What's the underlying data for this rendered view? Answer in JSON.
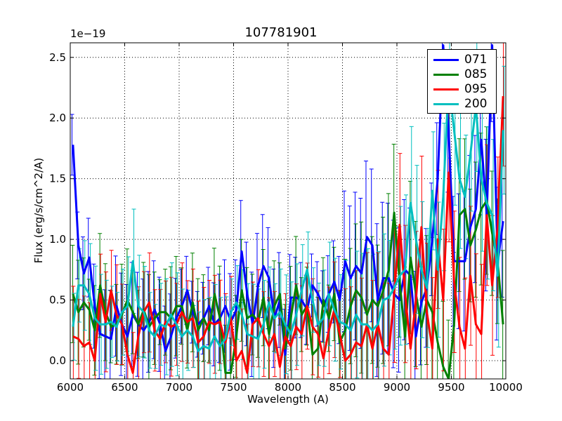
{
  "chart_data": {
    "type": "line",
    "title": "107781901",
    "xlabel": "Wavelength (A)",
    "ylabel": "Flux (erg/s/cm^2/A)",
    "y_offset_label": "1e−19",
    "xlim": [
      6000,
      10000
    ],
    "ylim": [
      -0.15,
      2.62
    ],
    "xticks": [
      6000,
      6500,
      7000,
      7500,
      8000,
      8500,
      9000,
      9500,
      10000
    ],
    "yticks": [
      0.0,
      0.5,
      1.0,
      1.5,
      2.0,
      2.5
    ],
    "ytick_labels": [
      "0.0",
      "0.5",
      "1.0",
      "1.5",
      "2.0",
      "2.5"
    ],
    "grid": true,
    "legend_position": "top-right",
    "x": [
      6025,
      6075,
      6125,
      6175,
      6225,
      6275,
      6325,
      6375,
      6425,
      6475,
      6525,
      6575,
      6625,
      6675,
      6725,
      6775,
      6825,
      6875,
      6925,
      6975,
      7025,
      7075,
      7125,
      7175,
      7225,
      7275,
      7325,
      7375,
      7425,
      7475,
      7525,
      7575,
      7625,
      7675,
      7725,
      7775,
      7825,
      7875,
      7925,
      7975,
      8025,
      8075,
      8125,
      8175,
      8225,
      8275,
      8325,
      8375,
      8425,
      8475,
      8525,
      8575,
      8625,
      8675,
      8725,
      8775,
      8825,
      8875,
      8925,
      8975,
      9025,
      9075,
      9125,
      9175,
      9225,
      9275,
      9325,
      9375,
      9425,
      9475,
      9525,
      9575,
      9625,
      9675,
      9725,
      9775,
      9825,
      9875,
      9925,
      9975
    ],
    "series": [
      {
        "name": "071",
        "color": "#0000ff",
        "values": [
          1.78,
          0.95,
          0.72,
          0.85,
          0.45,
          0.22,
          0.2,
          0.18,
          0.45,
          0.3,
          0.2,
          0.38,
          0.3,
          0.25,
          0.32,
          0.42,
          0.3,
          0.08,
          0.2,
          0.35,
          0.45,
          0.58,
          0.4,
          0.3,
          0.35,
          0.45,
          0.3,
          0.35,
          0.45,
          0.32,
          0.42,
          0.9,
          0.55,
          0.3,
          0.62,
          0.78,
          0.68,
          0.35,
          0.5,
          0.05,
          0.52,
          0.52,
          0.5,
          0.42,
          0.62,
          0.55,
          0.45,
          0.55,
          0.65,
          0.5,
          0.82,
          0.68,
          0.78,
          0.72,
          1.02,
          0.95,
          0.5,
          0.68,
          0.68,
          0.55,
          0.5,
          0.75,
          0.7,
          0.2,
          0.48,
          0.6,
          1.0,
          1.5,
          2.6,
          1.9,
          0.82,
          0.82,
          0.82,
          1.1,
          1.25,
          1.82,
          1.2,
          2.6,
          0.8,
          1.15
        ]
      },
      {
        "name": "085",
        "color": "#008000",
        "values": [
          0.55,
          0.4,
          0.48,
          0.42,
          0.25,
          0.62,
          0.4,
          0.28,
          0.3,
          0.38,
          0.5,
          0.4,
          0.3,
          0.42,
          0.28,
          0.35,
          0.4,
          0.4,
          0.35,
          0.45,
          0.45,
          0.25,
          0.48,
          0.25,
          0.35,
          0.25,
          0.55,
          0.35,
          -0.1,
          -0.1,
          0.2,
          0.58,
          0.35,
          0.38,
          0.32,
          0.52,
          0.22,
          0.45,
          0.55,
          0.1,
          0.35,
          0.62,
          0.38,
          0.45,
          0.05,
          0.1,
          0.5,
          0.35,
          0.55,
          0.15,
          0.25,
          0.45,
          0.58,
          0.52,
          0.38,
          0.5,
          0.45,
          0.58,
          0.75,
          1.22,
          0.65,
          0.2,
          0.85,
          0.55,
          0.28,
          0.5,
          0.4,
          0.15,
          -0.05,
          -0.15,
          0.3,
          1.2,
          1.25,
          0.95,
          1.08,
          1.25,
          1.32,
          1.05,
          0.82,
          0.3
        ]
      },
      {
        "name": "095",
        "color": "#ff0000",
        "values": [
          0.2,
          0.18,
          0.12,
          0.15,
          0.0,
          0.55,
          0.32,
          0.58,
          0.38,
          0.3,
          0.05,
          -0.1,
          0.2,
          0.4,
          0.48,
          0.25,
          0.18,
          0.32,
          0.28,
          0.3,
          0.4,
          0.32,
          0.35,
          0.15,
          0.2,
          0.32,
          0.3,
          0.32,
          0.15,
          0.35,
          0.0,
          0.08,
          -0.1,
          0.3,
          0.35,
          0.22,
          0.12,
          0.22,
          -0.05,
          0.2,
          0.12,
          0.28,
          0.22,
          0.45,
          0.28,
          0.22,
          0.02,
          0.25,
          0.42,
          0.22,
          0.0,
          0.05,
          0.15,
          0.12,
          0.3,
          0.1,
          0.3,
          0.1,
          0.05,
          0.55,
          1.12,
          0.55,
          0.1,
          0.5,
          1.1,
          0.4,
          0.1,
          1.0,
          0.5,
          1.55,
          0.65,
          0.28,
          0.1,
          0.7,
          0.3,
          0.22,
          1.2,
          0.62,
          1.1,
          2.18
        ]
      },
      {
        "name": "200",
        "color": "#00bfbf",
        "values": [
          0.28,
          0.62,
          0.62,
          0.55,
          0.35,
          0.3,
          0.3,
          0.32,
          0.28,
          0.4,
          0.45,
          0.82,
          0.45,
          0.4,
          0.25,
          0.2,
          0.3,
          0.28,
          0.38,
          0.3,
          0.2,
          0.25,
          0.2,
          0.08,
          0.12,
          0.1,
          0.2,
          0.12,
          0.18,
          0.4,
          0.48,
          0.38,
          0.22,
          0.2,
          0.18,
          0.3,
          0.48,
          0.35,
          0.4,
          0.3,
          0.22,
          0.38,
          0.58,
          0.75,
          0.5,
          0.3,
          0.35,
          0.55,
          0.42,
          0.32,
          0.3,
          0.25,
          0.38,
          0.3,
          0.3,
          0.25,
          0.3,
          0.5,
          0.52,
          0.6,
          0.7,
          0.75,
          1.3,
          1.0,
          0.75,
          0.6,
          1.4,
          0.75,
          1.35,
          2.3,
          1.9,
          1.5,
          1.35,
          1.7,
          2.1,
          1.5,
          1.3,
          1.2,
          0.7,
          1.9
        ]
      }
    ]
  }
}
